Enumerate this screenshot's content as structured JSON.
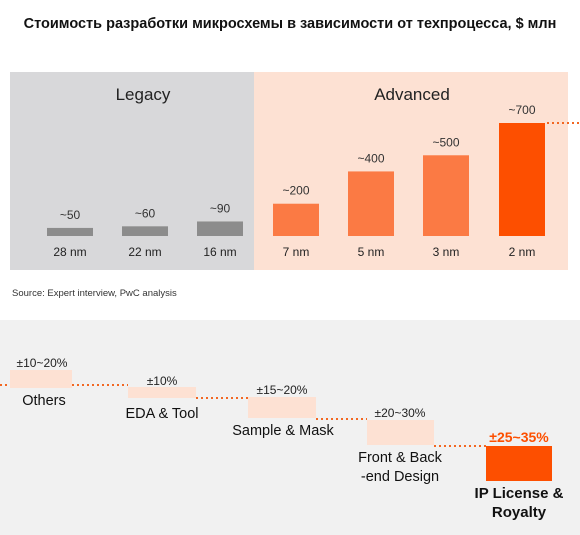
{
  "title": "Стоимость разработки микросхемы в зависимости от техпроцесса, $ млн",
  "source": "Source: Expert interview, PwC analysis",
  "chart_data": [
    {
      "type": "bar",
      "groups": [
        {
          "label": "Legacy",
          "categories": [
            "28 nm",
            "22 nm",
            "16 nm"
          ]
        },
        {
          "label": "Advanced",
          "categories": [
            "7 nm",
            "5 nm",
            "3 nm",
            "2 nm"
          ]
        }
      ],
      "categories": [
        "28 nm",
        "22 nm",
        "16 nm",
        "7 nm",
        "5 nm",
        "3 nm",
        "2 nm"
      ],
      "values": [
        50,
        60,
        90,
        200,
        400,
        500,
        700
      ],
      "value_labels": [
        "~50",
        "~60",
        "~90",
        "~200",
        "~400",
        "~500",
        "~700"
      ],
      "ylim": [
        0,
        720
      ],
      "colors": {
        "legacy_bg": "#d8d8da",
        "advanced_bg": "#fde1d3",
        "legacy_bar": "#8c8c8c",
        "advanced_bar": [
          "#fb7a44",
          "#fb7a44",
          "#fb7a44",
          "#fd4f00"
        ],
        "dotted": "#f26722"
      }
    },
    {
      "type": "waterfall",
      "steps": [
        {
          "name": "Others",
          "label": "±10~20%",
          "low": 10,
          "high": 20
        },
        {
          "name": "EDA & Tool",
          "label": "±10%",
          "low": 10,
          "high": 10
        },
        {
          "name": "Sample & Mask",
          "label": "±15~20%",
          "low": 15,
          "high": 20
        },
        {
          "name_lines": [
            "Front & Back",
            "-end Design"
          ],
          "label": "±20~30%",
          "low": 20,
          "high": 30
        },
        {
          "name_lines": [
            "IP License &",
            "Royalty"
          ],
          "label": "±25~35%",
          "low": 25,
          "high": 35,
          "highlight": true
        }
      ],
      "colors": {
        "panel_bg": "#f1f1f1",
        "block": "#fde1d3",
        "highlight": "#fd4f00",
        "connector": "#f26722"
      }
    }
  ]
}
